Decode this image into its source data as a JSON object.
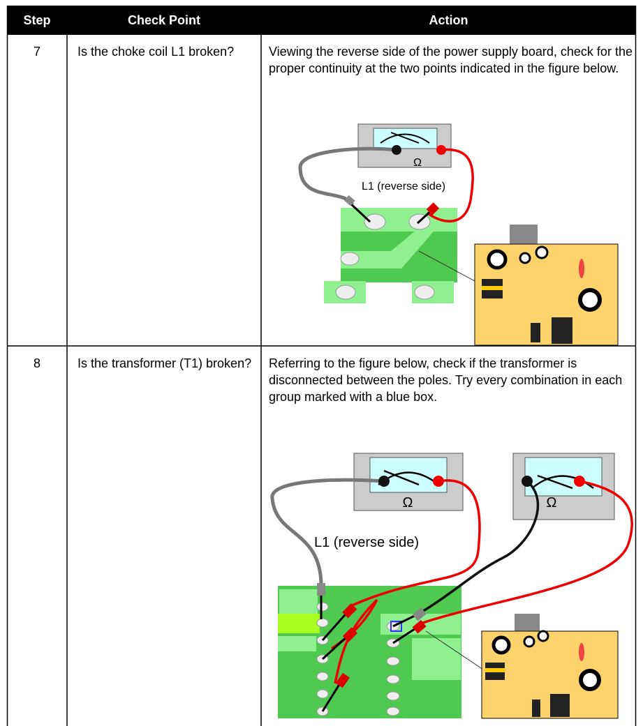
{
  "table": {
    "headers": [
      "Step",
      "Check Point",
      "Action"
    ],
    "rows": [
      [
        "7",
        "Is the choke coil L1 broken?",
        "Viewing the reverse side of the power supply board, check for the proper continuity at the two points indicated in the figure below."
      ],
      [
        "8",
        "Is the transformer (T1) broken?",
        "Referring to the figure below, check if the transformer is disconnected between the poles. Try every combination in each group marked with a blue box."
      ]
    ]
  },
  "figures": [
    {
      "meter_labels": [
        "Ω"
      ],
      "caption": "L1 (reverse side)"
    },
    {
      "meter_labels": [
        "Ω",
        "Ω"
      ],
      "caption": "L1 (reverse side)"
    }
  ]
}
